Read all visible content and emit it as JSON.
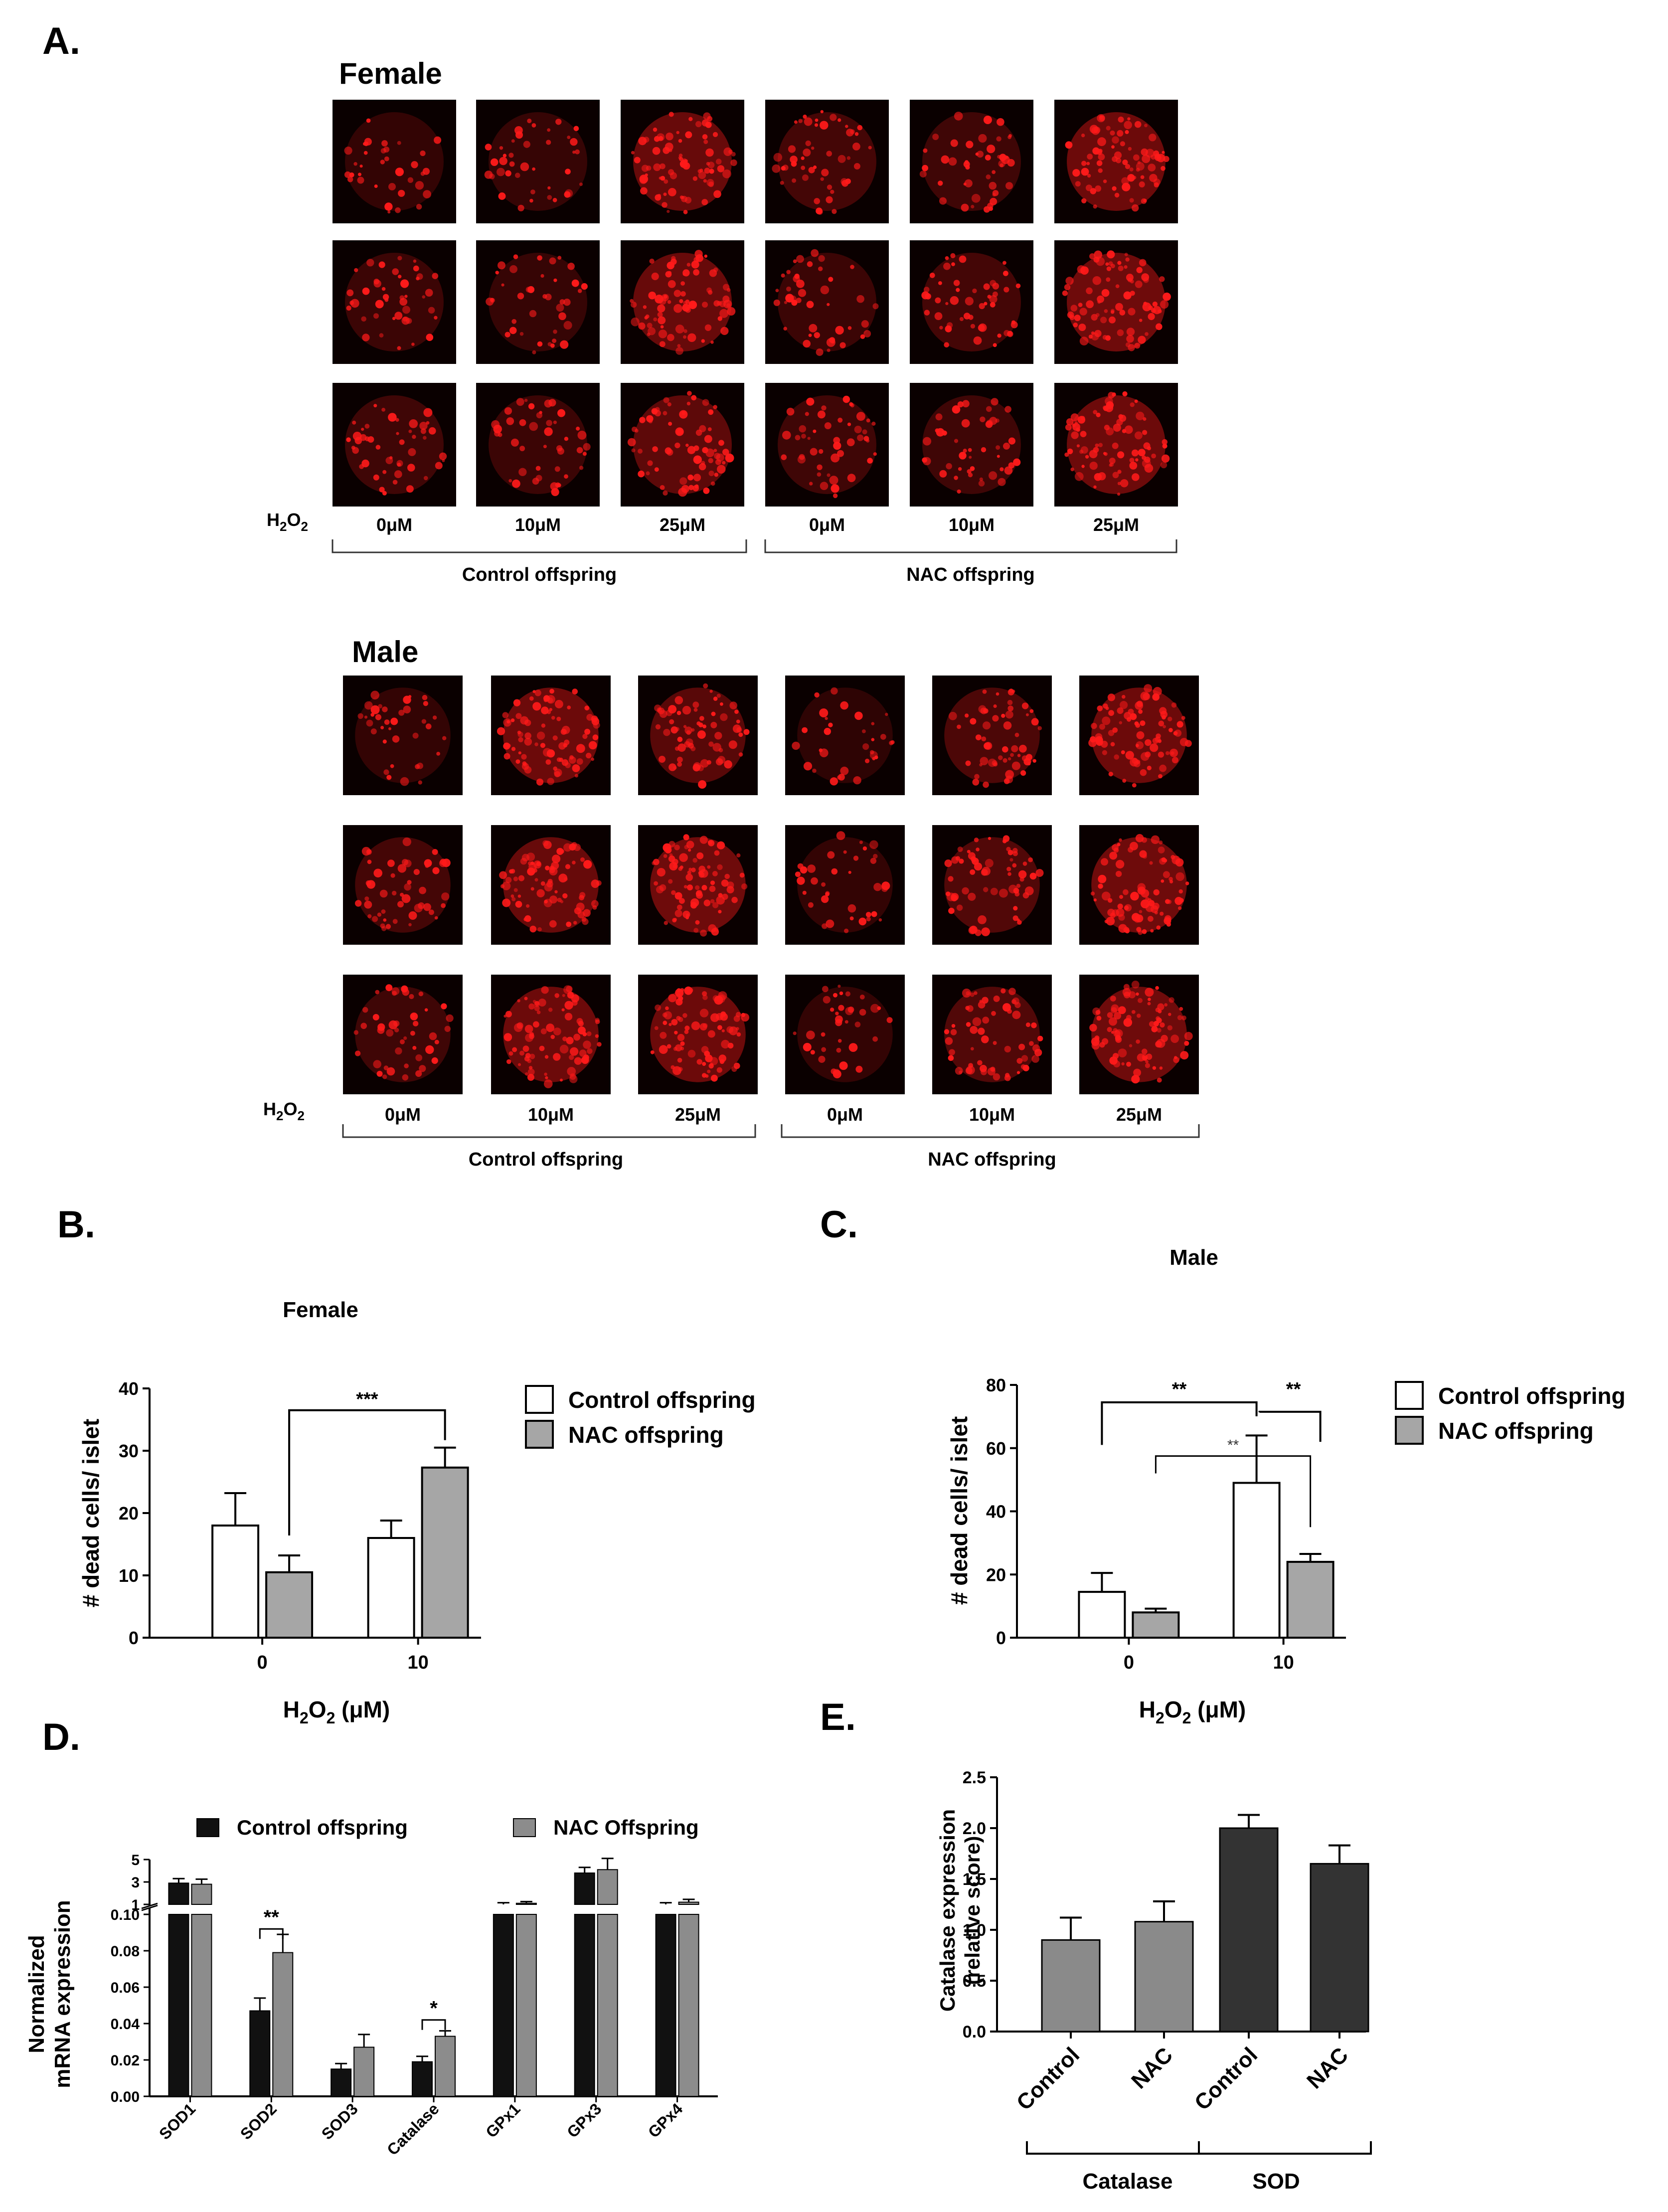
{
  "panels": {
    "A": {
      "letter": "A.",
      "female": {
        "title": "Female",
        "h2o2_label": "H2O2",
        "concentrations": [
          "0μM",
          "10μM",
          "25μM",
          "0μM",
          "10μM",
          "25μM"
        ],
        "groups": [
          "Control offspring",
          "NAC offspring"
        ],
        "micrograph_intensity": [
          [
            0.25,
            0.3,
            0.85,
            0.45,
            0.4,
            0.9
          ],
          [
            0.35,
            0.3,
            0.85,
            0.35,
            0.45,
            0.95
          ],
          [
            0.4,
            0.35,
            0.75,
            0.4,
            0.4,
            0.9
          ]
        ]
      },
      "male": {
        "title": "Male",
        "h2o2_label": "H2O2",
        "concentrations": [
          "0μM",
          "10μM",
          "25μM",
          "0μM",
          "10μM",
          "25μM"
        ],
        "groups": [
          "Control offspring",
          "NAC offspring"
        ],
        "micrograph_intensity": [
          [
            0.25,
            0.9,
            0.7,
            0.2,
            0.55,
            0.9
          ],
          [
            0.45,
            0.85,
            0.95,
            0.25,
            0.6,
            0.95
          ],
          [
            0.4,
            0.9,
            0.9,
            0.25,
            0.6,
            0.95
          ]
        ]
      }
    },
    "B": {
      "letter": "B.",
      "title": "Female"
    },
    "C": {
      "letter": "C.",
      "title": "Male"
    },
    "D": {
      "letter": "D."
    },
    "E": {
      "letter": "E."
    }
  },
  "colors": {
    "micrograph_bg": "#0a0000",
    "micrograph_red": "#ff1a1a",
    "control_fill": "#ffffff",
    "nac_fill": "#a6a6a6",
    "d_control_fill": "#111111",
    "d_nac_fill": "#8c8c8c",
    "e_catalase_fill": "#8a8a8a",
    "e_sod_fill": "#333333"
  },
  "chart_data": [
    {
      "panel": "B",
      "type": "bar",
      "title": "Female",
      "xlabel": "H2O2 (μM)",
      "ylabel": "# dead cells/ islet",
      "categories": [
        "0",
        "10"
      ],
      "ylim": [
        0,
        40
      ],
      "yticks": [
        "0",
        "10",
        "20",
        "30",
        "40"
      ],
      "series": [
        {
          "name": "Control offspring",
          "values": [
            18,
            16
          ],
          "errors": [
            5.2,
            2.8
          ]
        },
        {
          "name": "NAC offspring",
          "values": [
            10.5,
            27.3
          ],
          "errors": [
            2.7,
            3.2
          ]
        }
      ],
      "significance": [
        {
          "label": "***"
        }
      ],
      "legend": "right"
    },
    {
      "panel": "C",
      "type": "bar",
      "title": "Male",
      "xlabel": "H2O2 (μM)",
      "ylabel": "# dead cells/ islet",
      "categories": [
        "0",
        "10"
      ],
      "ylim": [
        0,
        80
      ],
      "yticks": [
        "0",
        "20",
        "40",
        "60",
        "80"
      ],
      "series": [
        {
          "name": "Control offspring",
          "values": [
            14.5,
            49
          ],
          "errors": [
            6,
            15
          ]
        },
        {
          "name": "NAC offspring",
          "values": [
            8,
            24
          ],
          "errors": [
            1.2,
            2.5
          ]
        }
      ],
      "significance": [
        {
          "label": "**"
        },
        {
          "label": "**"
        },
        {
          "label": "**"
        }
      ],
      "legend": "right"
    },
    {
      "panel": "D",
      "type": "bar",
      "ylabel": "Normalized mRNA expression",
      "categories": [
        "SOD1",
        "SOD2",
        "SOD3",
        "Catalase",
        "GPx1",
        "GPx3",
        "GPx4"
      ],
      "yticks_lower": [
        "0.00",
        "0.02",
        "0.04",
        "0.06",
        "0.08",
        "0.10"
      ],
      "yticks_upper": [
        "1",
        "3",
        "5"
      ],
      "axis_break": true,
      "series": [
        {
          "name": "Control offspring",
          "values": [
            2.9,
            0.047,
            0.015,
            0.019,
            1.0,
            3.8,
            1.0
          ],
          "errors": [
            0.4,
            0.007,
            0.003,
            0.003,
            0.15,
            0.5,
            0.15
          ]
        },
        {
          "name": "NAC Offspring",
          "values": [
            2.8,
            0.079,
            0.027,
            0.033,
            1.1,
            4.1,
            1.2
          ],
          "errors": [
            0.45,
            0.01,
            0.007,
            0.003,
            0.15,
            1.0,
            0.25
          ]
        }
      ],
      "significance": [
        {
          "label": "**"
        },
        {
          "label": "*"
        }
      ],
      "legend": "top"
    },
    {
      "panel": "E",
      "type": "bar",
      "ylabel": "Catalase expression (relative score)",
      "categories": [
        "Control",
        "NAC",
        "Control",
        "NAC"
      ],
      "groups": [
        "Catalase",
        "SOD"
      ],
      "ylim": [
        0,
        2.5
      ],
      "yticks": [
        "0.0",
        "0.5",
        "1.0",
        "1.5",
        "2.0",
        "2.5"
      ],
      "values": [
        0.9,
        1.08,
        2.0,
        1.65
      ],
      "errors": [
        0.22,
        0.2,
        0.13,
        0.18
      ]
    }
  ]
}
